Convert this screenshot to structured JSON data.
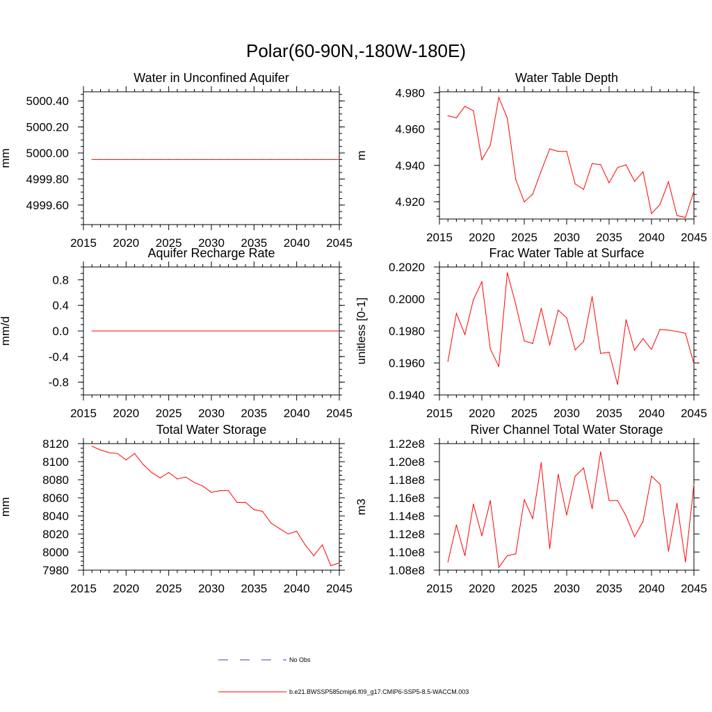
{
  "figure_title": "Polar(60-90N,-180W-180E)",
  "legend": {
    "entries": [
      {
        "label": "No Obs",
        "color": "#3b3bd1",
        "style": "dashed"
      },
      {
        "label": "b.e21.BWSSP585cmip6.f09_g17.CMIP6-SSP5-8.5-WACCM.003",
        "color": "#ff0000",
        "style": "solid"
      }
    ]
  },
  "chart_data": [
    {
      "type": "line",
      "title": "Water in Unconfined Aquifer",
      "xlabel": "",
      "ylabel": "mm",
      "xlim": [
        2015,
        2045
      ],
      "ylim": [
        4999.45,
        5000.47
      ],
      "xticks": [
        2015,
        2020,
        2025,
        2030,
        2035,
        2040,
        2045
      ],
      "xtick_labels": [
        "2015",
        "2020",
        "2025",
        "2030",
        "2035",
        "2040",
        "2045"
      ],
      "yticks": [
        4999.6,
        4999.8,
        5000.0,
        5000.2,
        5000.4
      ],
      "ytick_labels": [
        "4999.60",
        "4999.80",
        "5000.00",
        "5000.20",
        "5000.40"
      ],
      "minor_y": 0.05,
      "series": [
        {
          "name": "b.e21.BWSSP585cmip6.f09_g17.CMIP6-SSP5-8.5-WACCM.003",
          "color": "#ff0000",
          "x": [
            2016,
            2017,
            2018,
            2019,
            2020,
            2021,
            2022,
            2023,
            2024,
            2025,
            2026,
            2027,
            2028,
            2029,
            2030,
            2031,
            2032,
            2033,
            2034,
            2035,
            2036,
            2037,
            2038,
            2039,
            2040,
            2041,
            2042,
            2043,
            2044,
            2045
          ],
          "y": [
            4999.95,
            4999.95,
            4999.95,
            4999.95,
            4999.95,
            4999.95,
            4999.95,
            4999.95,
            4999.95,
            4999.95,
            4999.95,
            4999.95,
            4999.95,
            4999.95,
            4999.95,
            4999.95,
            4999.95,
            4999.95,
            4999.95,
            4999.95,
            4999.95,
            4999.95,
            4999.95,
            4999.95,
            4999.95,
            4999.95,
            4999.95,
            4999.95,
            4999.95,
            4999.95
          ]
        }
      ]
    },
    {
      "type": "line",
      "title": "Water Table Depth",
      "xlabel": "",
      "ylabel": "m",
      "xlim": [
        2015,
        2045
      ],
      "ylim": [
        4.9105,
        4.9805
      ],
      "xticks": [
        2015,
        2020,
        2025,
        2030,
        2035,
        2040,
        2045
      ],
      "xtick_labels": [
        "2015",
        "2020",
        "2025",
        "2030",
        "2035",
        "2040",
        "2045"
      ],
      "yticks": [
        4.92,
        4.94,
        4.96,
        4.98
      ],
      "ytick_labels": [
        "4.920",
        "4.940",
        "4.960",
        "4.980"
      ],
      "minor_y": 0.004,
      "series": [
        {
          "name": "b.e21.BWSSP585cmip6.f09_g17.CMIP6-SSP5-8.5-WACCM.003",
          "color": "#ff0000",
          "x": [
            2016,
            2017,
            2018,
            2019,
            2020,
            2021,
            2022,
            2023,
            2024,
            2025,
            2026,
            2027,
            2028,
            2029,
            2030,
            2031,
            2032,
            2033,
            2034,
            2035,
            2036,
            2037,
            2038,
            2039,
            2040,
            2041,
            2042,
            2043,
            2044,
            2045
          ],
          "y": [
            4.9673,
            4.9662,
            4.9725,
            4.9701,
            4.9431,
            4.9512,
            4.9774,
            4.966,
            4.9322,
            4.9199,
            4.9242,
            4.937,
            4.9491,
            4.9477,
            4.9477,
            4.9298,
            4.9268,
            4.941,
            4.9404,
            4.9304,
            4.9388,
            4.9403,
            4.9312,
            4.9365,
            4.9135,
            4.9185,
            4.931,
            4.9124,
            4.9114,
            4.9258
          ]
        }
      ]
    },
    {
      "type": "line",
      "title": "Aquifer Recharge Rate",
      "xlabel": "",
      "ylabel": "mm/d",
      "xlim": [
        2015,
        2045
      ],
      "ylim": [
        -1.0,
        1.0
      ],
      "xticks": [
        2015,
        2020,
        2025,
        2030,
        2035,
        2040,
        2045
      ],
      "xtick_labels": [
        "2015",
        "2020",
        "2025",
        "2030",
        "2035",
        "2040",
        "2045"
      ],
      "yticks": [
        -0.8,
        -0.4,
        0.0,
        0.4,
        0.8
      ],
      "ytick_labels": [
        "-0.8",
        "-0.4",
        "0.0",
        "0.4",
        "0.8"
      ],
      "minor_y": 0.1,
      "series": [
        {
          "name": "b.e21.BWSSP585cmip6.f09_g17.CMIP6-SSP5-8.5-WACCM.003",
          "color": "#ff0000",
          "x": [
            2016,
            2017,
            2018,
            2019,
            2020,
            2021,
            2022,
            2023,
            2024,
            2025,
            2026,
            2027,
            2028,
            2029,
            2030,
            2031,
            2032,
            2033,
            2034,
            2035,
            2036,
            2037,
            2038,
            2039,
            2040,
            2041,
            2042,
            2043,
            2044,
            2045
          ],
          "y": [
            0,
            0,
            0,
            0,
            0,
            0,
            0,
            0,
            0,
            0,
            0,
            0,
            0,
            0,
            0,
            0,
            0,
            0,
            0,
            0,
            0,
            0,
            0,
            0,
            0,
            0,
            0,
            0,
            0,
            0
          ]
        }
      ]
    },
    {
      "type": "line",
      "title": "Frac Water Table at Surface",
      "xlabel": "",
      "ylabel": "unitless [0-1]",
      "xlim": [
        2015,
        2045
      ],
      "ylim": [
        0.194,
        0.202
      ],
      "xticks": [
        2015,
        2020,
        2025,
        2030,
        2035,
        2040,
        2045
      ],
      "xtick_labels": [
        "2015",
        "2020",
        "2025",
        "2030",
        "2035",
        "2040",
        "2045"
      ],
      "yticks": [
        0.194,
        0.196,
        0.198,
        0.2,
        0.202
      ],
      "ytick_labels": [
        "0.1940",
        "0.1960",
        "0.1980",
        "0.2000",
        "0.2020"
      ],
      "minor_y": 0.0004,
      "series": [
        {
          "name": "b.e21.BWSSP585cmip6.f09_g17.CMIP6-SSP5-8.5-WACCM.003",
          "color": "#ff0000",
          "x": [
            2016,
            2017,
            2018,
            2019,
            2020,
            2021,
            2022,
            2023,
            2024,
            2025,
            2026,
            2027,
            2028,
            2029,
            2030,
            2031,
            2032,
            2033,
            2034,
            2035,
            2036,
            2037,
            2038,
            2039,
            2040,
            2041,
            2042,
            2043,
            2044,
            2045
          ],
          "y": [
            0.1961,
            0.1991,
            0.19778,
            0.19995,
            0.20108,
            0.19687,
            0.19578,
            0.20165,
            0.19965,
            0.19738,
            0.19722,
            0.19942,
            0.19712,
            0.1993,
            0.19882,
            0.19682,
            0.19735,
            0.20015,
            0.1966,
            0.19667,
            0.19465,
            0.1987,
            0.1968,
            0.19752,
            0.19685,
            0.1981,
            0.19805,
            0.19797,
            0.19785,
            0.19595
          ]
        }
      ]
    },
    {
      "type": "line",
      "title": "Total Water Storage",
      "xlabel": "",
      "ylabel": "mm",
      "xlim": [
        2015,
        2045
      ],
      "ylim": [
        7980,
        8120
      ],
      "xticks": [
        2015,
        2020,
        2025,
        2030,
        2035,
        2040,
        2045
      ],
      "xtick_labels": [
        "2015",
        "2020",
        "2025",
        "2030",
        "2035",
        "2040",
        "2045"
      ],
      "yticks": [
        7980,
        8000,
        8020,
        8040,
        8060,
        8080,
        8100,
        8120
      ],
      "ytick_labels": [
        "7980",
        "8000",
        "8020",
        "8040",
        "8060",
        "8080",
        "8100",
        "8120"
      ],
      "minor_y": 5,
      "series": [
        {
          "name": "b.e21.BWSSP585cmip6.f09_g17.CMIP6-SSP5-8.5-WACCM.003",
          "color": "#ff0000",
          "x": [
            2016,
            2017,
            2018,
            2019,
            2020,
            2021,
            2022,
            2023,
            2024,
            2025,
            2026,
            2027,
            2028,
            2029,
            2030,
            2031,
            2032,
            2033,
            2034,
            2035,
            2036,
            2037,
            2038,
            2039,
            2040,
            2041,
            2042,
            2043,
            2044,
            2045
          ],
          "y": [
            8117,
            8113,
            8110,
            8109,
            8102,
            8109,
            8097,
            8088,
            8082,
            8088,
            8081,
            8083,
            8077,
            8073,
            8066,
            8068,
            8068,
            8055,
            8055,
            8047,
            8045,
            8032,
            8026,
            8020,
            8023,
            8008,
            7996,
            8008,
            7985,
            7988
          ]
        }
      ]
    },
    {
      "type": "line",
      "title": "River Channel Total Water Storage",
      "xlabel": "",
      "ylabel": "m3",
      "xlim": [
        2015,
        2045
      ],
      "ylim": [
        108000000.0,
        122000000.0
      ],
      "xticks": [
        2015,
        2020,
        2025,
        2030,
        2035,
        2040,
        2045
      ],
      "xtick_labels": [
        "2015",
        "2020",
        "2025",
        "2030",
        "2035",
        "2040",
        "2045"
      ],
      "yticks": [
        108000000.0,
        110000000.0,
        112000000.0,
        114000000.0,
        116000000.0,
        118000000.0,
        120000000.0,
        122000000.0
      ],
      "ytick_labels": [
        "1.08e8",
        "1.10e8",
        "1.12e8",
        "1.14e8",
        "1.16e8",
        "1.18e8",
        "1.20e8",
        "1.22e8"
      ],
      "minor_y": 5000000,
      "series": [
        {
          "name": "b.e21.BWSSP585cmip6.f09_g17.CMIP6-SSP5-8.5-WACCM.003",
          "color": "#ff0000",
          "x": [
            2016,
            2017,
            2018,
            2019,
            2020,
            2021,
            2022,
            2023,
            2024,
            2025,
            2026,
            2027,
            2028,
            2029,
            2030,
            2031,
            2032,
            2033,
            2034,
            2035,
            2036,
            2037,
            2038,
            2039,
            2040,
            2041,
            2042,
            2043,
            2044,
            2045
          ],
          "y": [
            108900000.0,
            113000000.0,
            109600000.0,
            115300000.0,
            111800000.0,
            115700000.0,
            108300000.0,
            109600000.0,
            109800000.0,
            115800000.0,
            113700000.0,
            119900000.0,
            110400000.0,
            118600000.0,
            114100000.0,
            118400000.0,
            119300000.0,
            114800000.0,
            121100000.0,
            115700000.0,
            115700000.0,
            114000000.0,
            111700000.0,
            113400000.0,
            118400000.0,
            117500000.0,
            110100000.0,
            115400000.0,
            108900000.0,
            117500000.0
          ]
        }
      ]
    }
  ]
}
